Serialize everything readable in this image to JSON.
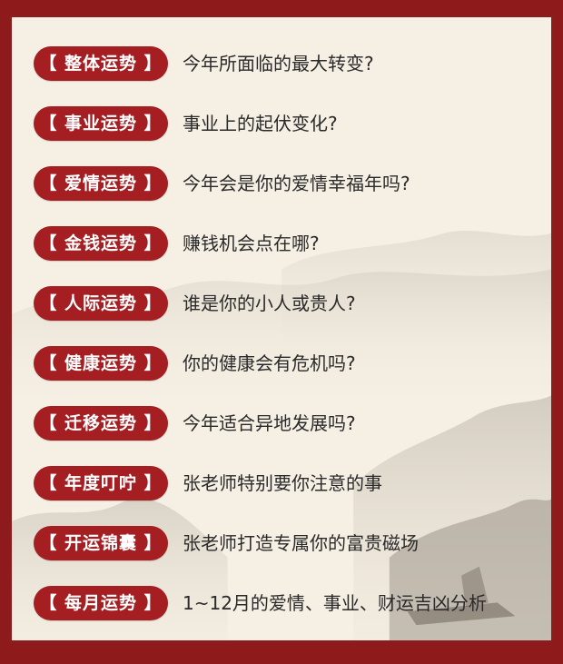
{
  "items": [
    {
      "tag": "【 整体运势 】",
      "desc": "今年所面临的最大转变?"
    },
    {
      "tag": "【 事业运势 】",
      "desc": "事业上的起伏变化?"
    },
    {
      "tag": "【 爱情运势 】",
      "desc": "今年会是你的爱情幸福年吗?"
    },
    {
      "tag": "【 金钱运势 】",
      "desc": "赚钱机会点在哪?"
    },
    {
      "tag": "【 人际运势 】",
      "desc": "谁是你的小人或贵人?"
    },
    {
      "tag": "【 健康运势 】",
      "desc": "你的健康会有危机吗?"
    },
    {
      "tag": "【 迁移运势 】",
      "desc": "今年适合异地发展吗?"
    },
    {
      "tag": "【 年度叮咛 】",
      "desc": "张老师特别要你注意的事"
    },
    {
      "tag": "【 开运锦囊 】",
      "desc": "张老师打造专属你的富贵磁场"
    },
    {
      "tag": "【 每月运势 】",
      "desc": "1~12月的爱情、事业、财运吉凶分析"
    }
  ],
  "colors": {
    "frame": "#8c1d1f",
    "badge": "#a41e22",
    "paper": "#f6f0e4",
    "text": "#2a2a2a"
  },
  "icons": {
    "background": "ink-landscape-painting"
  }
}
